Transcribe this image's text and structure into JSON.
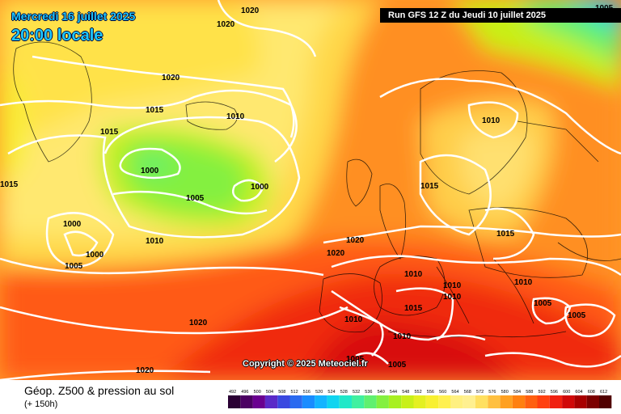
{
  "header": {
    "date": "Mercredi 16 juillet 2025",
    "time": "20:00 locale",
    "run": "Run GFS 12 Z du Jeudi 10 juillet 2025"
  },
  "copyright": "Copyright © 2025 Meteociel.fr",
  "footer": {
    "product": "Géop. Z500 & pression au sol",
    "lead": "(+ 150h)"
  },
  "isobar_labels": [
    {
      "text": "1020"
    },
    {
      "text": "1020"
    },
    {
      "text": "1020"
    },
    {
      "text": "1015"
    },
    {
      "text": "1015"
    },
    {
      "text": "1010"
    },
    {
      "text": "1000"
    },
    {
      "text": "1000"
    },
    {
      "text": "1005"
    },
    {
      "text": "1015"
    },
    {
      "text": "1000"
    },
    {
      "text": "1000"
    },
    {
      "text": "1010"
    },
    {
      "text": "1005"
    },
    {
      "text": "1020"
    },
    {
      "text": "1020"
    },
    {
      "text": "1010"
    },
    {
      "text": "1015"
    },
    {
      "text": "1015"
    },
    {
      "text": "1010"
    },
    {
      "text": "1010"
    },
    {
      "text": "1010"
    },
    {
      "text": "1015"
    },
    {
      "text": "1010"
    },
    {
      "text": "1010"
    },
    {
      "text": "1010"
    },
    {
      "text": "1005"
    },
    {
      "text": "1005"
    },
    {
      "text": "1020"
    },
    {
      "text": "1020"
    },
    {
      "text": "1005"
    },
    {
      "text": "1005"
    },
    {
      "text": "1005"
    }
  ],
  "color_scale": {
    "labels": [
      "492",
      "496",
      "500",
      "504",
      "508",
      "512",
      "516",
      "520",
      "524",
      "528",
      "532",
      "536",
      "540",
      "544",
      "548",
      "552",
      "556",
      "560",
      "564",
      "568",
      "572",
      "576",
      "580",
      "584",
      "588",
      "592",
      "596",
      "600",
      "604",
      "608",
      "612"
    ],
    "colors": [
      "#2a0033",
      "#4b0062",
      "#6a0090",
      "#5a2ac8",
      "#3a48e0",
      "#2a6af0",
      "#1a8cff",
      "#14b4ff",
      "#10d4f0",
      "#20e8c8",
      "#40f0a0",
      "#60f070",
      "#84f040",
      "#a8f020",
      "#c8f018",
      "#e4f020",
      "#f8f030",
      "#fff050",
      "#fff080",
      "#fff090",
      "#ffe060",
      "#ffc040",
      "#ffa020",
      "#ff8010",
      "#ff6010",
      "#ff4010",
      "#f02010",
      "#d00808",
      "#a80000",
      "#7c0000",
      "#500000"
    ]
  },
  "colors": {
    "title": "#1ec8ff",
    "isobar": "#ffffff"
  }
}
